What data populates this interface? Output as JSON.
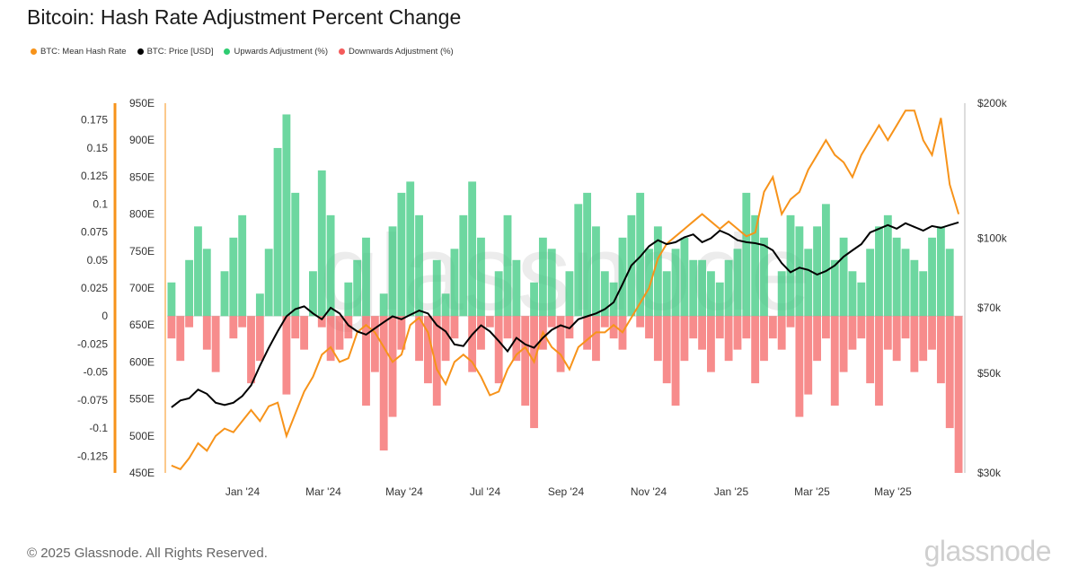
{
  "title": "Bitcoin: Hash Rate Adjustment Percent Change",
  "footer": "© 2025 Glassnode. All Rights Reserved.",
  "brand": "glassnode",
  "watermark": "glassnode",
  "legend": [
    {
      "label": "BTC: Mean Hash Rate",
      "color": "#f7931a"
    },
    {
      "label": "BTC: Price [USD]",
      "color": "#000000"
    },
    {
      "label": "Upwards Adjustment (%)",
      "color": "#2ecc71"
    },
    {
      "label": "Downwards Adjustment (%)",
      "color": "#f45b5b"
    }
  ],
  "chart_data": {
    "type": "bar",
    "x_ticks": [
      "Jan '24",
      "Mar '24",
      "May '24",
      "Jul '24",
      "Sep '24",
      "Nov '24",
      "Jan '25",
      "Mar '25",
      "May '25"
    ],
    "adjustment_axis": {
      "ticks": [
        "0.175",
        "0.15",
        "0.125",
        "0.1",
        "0.075",
        "0.05",
        "0.025",
        "0",
        "-0.025",
        "-0.05",
        "-0.075",
        "-0.1",
        "-0.125"
      ],
      "range": [
        -0.14,
        0.19
      ]
    },
    "hashrate_axis": {
      "ticks": [
        "950E",
        "900E",
        "850E",
        "800E",
        "750E",
        "700E",
        "650E",
        "600E",
        "550E",
        "500E",
        "450E"
      ],
      "range": [
        450,
        950
      ]
    },
    "price_axis": {
      "ticks": [
        "$200k",
        "$100k",
        "$70k",
        "$50k",
        "$30k"
      ],
      "scale": "log",
      "range": [
        30000,
        200000
      ]
    },
    "series": [
      {
        "name": "BTC: Mean Hash Rate",
        "type": "line",
        "color": "#f7931a",
        "values": [
          460,
          455,
          470,
          490,
          480,
          500,
          510,
          505,
          520,
          535,
          520,
          540,
          545,
          500,
          530,
          560,
          580,
          610,
          620,
          600,
          605,
          640,
          650,
          640,
          620,
          600,
          610,
          650,
          660,
          640,
          590,
          570,
          600,
          610,
          600,
          580,
          555,
          560,
          590,
          610,
          620,
          600,
          640,
          620,
          610,
          590,
          620,
          630,
          640,
          640,
          650,
          640,
          660,
          680,
          700,
          740,
          760,
          770,
          780,
          790,
          800,
          790,
          780,
          790,
          780,
          770,
          775,
          830,
          850,
          800,
          820,
          830,
          860,
          880,
          900,
          880,
          870,
          850,
          880,
          900,
          920,
          900,
          920,
          940,
          940,
          900,
          880,
          930,
          840,
          800
        ]
      },
      {
        "name": "BTC: Price [USD]",
        "type": "line",
        "color": "#000000",
        "values": [
          42000,
          43500,
          44000,
          46000,
          45000,
          43000,
          42500,
          43000,
          44500,
          47000,
          52000,
          57000,
          62000,
          67000,
          69500,
          70500,
          68000,
          66000,
          70000,
          68000,
          64000,
          62000,
          61000,
          63000,
          65000,
          67000,
          66000,
          67500,
          69000,
          68000,
          64000,
          62000,
          58000,
          57500,
          61000,
          64000,
          62000,
          59000,
          56000,
          60000,
          58000,
          57000,
          60000,
          62500,
          64000,
          63000,
          66000,
          67000,
          68000,
          69500,
          72000,
          79000,
          87000,
          91000,
          96000,
          99000,
          97000,
          98000,
          100500,
          102000,
          98000,
          100000,
          104000,
          102000,
          99000,
          98000,
          97500,
          96500,
          94000,
          88000,
          84000,
          86000,
          85000,
          83000,
          84500,
          87000,
          91000,
          94000,
          97000,
          103000,
          105000,
          107000,
          105000,
          108000,
          106000,
          104000,
          106500,
          105500,
          107000,
          108500
        ]
      },
      {
        "name": "Upwards Adjustment (%)",
        "type": "bar",
        "color": "#2ecc71",
        "values": [
          0.03,
          0,
          0.05,
          0.08,
          0.06,
          0,
          0.04,
          0.07,
          0.09,
          0,
          0.02,
          0.06,
          0.15,
          0.18,
          0.11,
          0,
          0.04,
          0.13,
          0.09,
          0,
          0.03,
          0.05,
          0.07,
          0,
          0.02,
          0.08,
          0.11,
          0.12,
          0.09,
          0,
          0.05,
          0.02,
          0.06,
          0.09,
          0.12,
          0.07,
          0,
          0.04,
          0.09,
          0.05,
          0,
          0.03,
          0.07,
          0.06,
          0,
          0.04,
          0.1,
          0.11,
          0.08,
          0.04,
          0.03,
          0.07,
          0.09,
          0.11,
          0.06,
          0.08,
          0.04,
          0.06,
          0.07,
          0.05,
          0.05,
          0.04,
          0.03,
          0.05,
          0.06,
          0.11,
          0.09,
          0.07,
          0,
          0.04,
          0.09,
          0.08,
          0.06,
          0.08,
          0.1,
          0.05,
          0.07,
          0.04,
          0.03,
          0.06,
          0.08,
          0.09,
          0.07,
          0.06,
          0.05,
          0.04,
          0.07,
          0.08,
          0.06,
          0
        ]
      },
      {
        "name": "Downwards Adjustment (%)",
        "type": "bar",
        "color": "#f45b5b",
        "values": [
          -0.02,
          -0.04,
          -0.01,
          0,
          -0.03,
          -0.05,
          0,
          -0.02,
          -0.01,
          -0.06,
          -0.04,
          0,
          0,
          -0.07,
          -0.02,
          -0.03,
          0,
          -0.01,
          -0.04,
          -0.03,
          -0.02,
          0,
          -0.08,
          -0.05,
          -0.12,
          -0.09,
          -0.03,
          0,
          -0.04,
          -0.06,
          -0.08,
          -0.04,
          -0.02,
          0,
          -0.05,
          -0.03,
          -0.01,
          -0.06,
          -0.02,
          -0.04,
          -0.08,
          -0.1,
          -0.03,
          -0.01,
          -0.05,
          -0.02,
          0,
          -0.03,
          -0.04,
          -0.01,
          -0.02,
          -0.03,
          0,
          -0.01,
          -0.02,
          -0.04,
          -0.06,
          -0.08,
          -0.04,
          -0.02,
          -0.03,
          -0.05,
          -0.02,
          -0.04,
          -0.03,
          -0.02,
          -0.06,
          -0.04,
          -0.02,
          -0.03,
          -0.01,
          -0.09,
          -0.07,
          -0.04,
          -0.02,
          -0.08,
          -0.05,
          -0.03,
          -0.02,
          -0.06,
          -0.08,
          -0.03,
          -0.04,
          -0.02,
          -0.05,
          -0.04,
          -0.03,
          -0.06,
          -0.1,
          -0.14
        ]
      }
    ]
  }
}
